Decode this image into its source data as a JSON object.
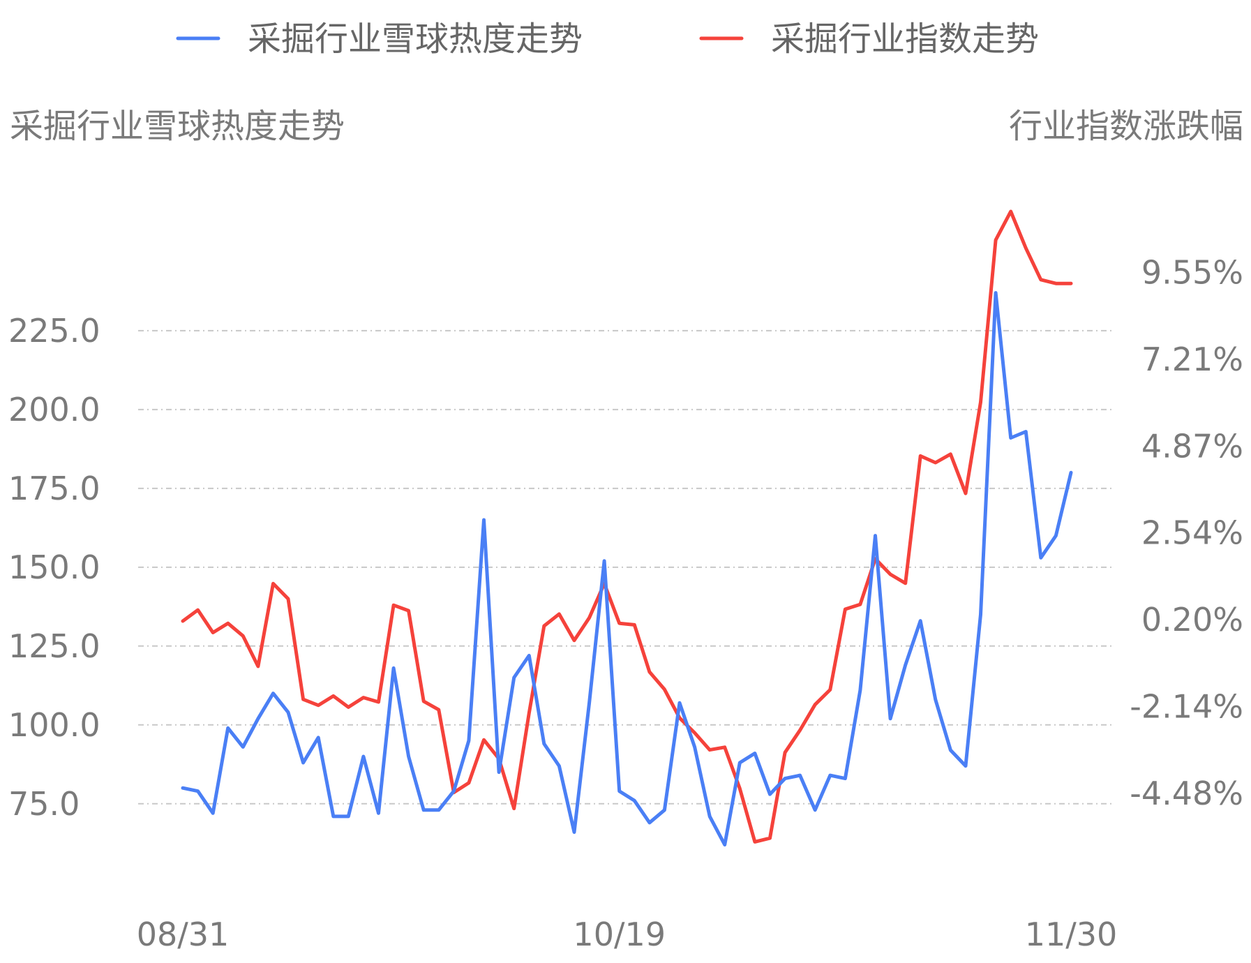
{
  "chart_data": {
    "type": "line",
    "legend": {
      "position": "top",
      "entries": [
        "采掘行业雪球热度走势",
        "采掘行业指数走势"
      ]
    },
    "y_left": {
      "label": "采掘行业雪球热度走势",
      "ticks": [
        "225.0",
        "200.0",
        "175.0",
        "150.0",
        "125.0",
        "100.0",
        "75.0"
      ],
      "tick_values": [
        225,
        200,
        175,
        150,
        125,
        100,
        75
      ],
      "range": [
        51.5,
        262.8
      ]
    },
    "y_right": {
      "label": "行业指数涨跌幅",
      "ticks": [
        "9.55%",
        "7.21%",
        "4.87%",
        "2.54%",
        "0.20%",
        "-2.14%",
        "-4.48%"
      ],
      "tick_values": [
        9.55,
        7.21,
        4.87,
        2.54,
        0.2,
        -2.14,
        -4.48
      ],
      "range": [
        -6.76,
        11.2
      ]
    },
    "x": {
      "tick_labels": [
        "08/31",
        "10/19",
        "11/30"
      ],
      "tick_indices": [
        0,
        29,
        59
      ],
      "count": 60
    },
    "grid": true,
    "series": [
      {
        "name": "采掘行业雪球热度走势",
        "axis": "left",
        "color": "#4a7ff5",
        "values": [
          80,
          79,
          72,
          99,
          93,
          102,
          110,
          104,
          88,
          96,
          71,
          71,
          90,
          72,
          118,
          90,
          73,
          73,
          79,
          95,
          165,
          85,
          115,
          122,
          94,
          87,
          66,
          107,
          152,
          79,
          76,
          69,
          73,
          107,
          93,
          71,
          62,
          88,
          91,
          78,
          83,
          84,
          73,
          84,
          83,
          111,
          160,
          102,
          119,
          133,
          108,
          92,
          87,
          135,
          237,
          191,
          193,
          153,
          160,
          180
        ]
      },
      {
        "name": "采掘行业指数走势",
        "axis": "right",
        "color": "#f5423b",
        "values": [
          0.16,
          0.46,
          -0.15,
          0.1,
          -0.24,
          -1.06,
          1.17,
          0.76,
          -1.95,
          -2.11,
          -1.86,
          -2.16,
          -1.9,
          -2.02,
          0.59,
          0.44,
          -2.0,
          -2.23,
          -4.46,
          -4.2,
          -3.04,
          -3.55,
          -4.89,
          -2.32,
          0.03,
          0.35,
          -0.36,
          0.25,
          1.17,
          0.1,
          0.06,
          -1.21,
          -1.68,
          -2.45,
          -2.85,
          -3.31,
          -3.24,
          -4.35,
          -5.79,
          -5.69,
          -3.38,
          -2.78,
          -2.09,
          -1.69,
          0.48,
          0.61,
          1.84,
          1.42,
          1.18,
          4.61,
          4.43,
          4.66,
          3.6,
          6.06,
          10.43,
          11.2,
          10.21,
          9.36,
          9.26,
          9.26
        ]
      }
    ]
  }
}
